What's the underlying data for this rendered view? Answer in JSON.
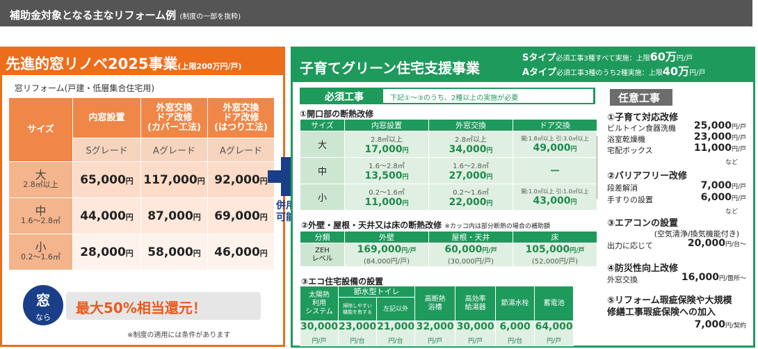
{
  "header": {
    "title": "補助金対象となる主なリフォーム例",
    "note": "(制度の一部を抜粋)"
  },
  "left": {
    "title": "先進的窓リノベ2025事業",
    "title_note": "(上限200万円/戸)",
    "subtitle": "窓リフォーム(戸建・低層集合住宅用)",
    "col_size": "サイズ",
    "cols": [
      {
        "h": "内窓設置",
        "g": "Sグレード"
      },
      {
        "h": "外窓交換\nドア改修\n(カバー工法)",
        "g": "Aグレード"
      },
      {
        "h": "外窓交換\nドア改修\n(はつり工法)",
        "g": "Aグレード"
      }
    ],
    "rows": [
      {
        "size": "大",
        "range": "2.8㎡以上",
        "v": [
          "65,000",
          "117,000",
          "92,000"
        ]
      },
      {
        "size": "中",
        "range": "1.6～2.8㎡",
        "v": [
          "44,000",
          "87,000",
          "69,000"
        ]
      },
      {
        "size": "小",
        "range": "0.2～1.6㎡",
        "v": [
          "28,000",
          "58,000",
          "46,000"
        ]
      }
    ],
    "unit": "円",
    "badge_main": "窓",
    "badge_sub": "なら",
    "promo": "最大50%相当還元！",
    "footnote": "※制度の適用には条件があります"
  },
  "combine": "併用\n可能",
  "right": {
    "title": "子育てグリーン住宅支援事業",
    "s_type": "Sタイプ",
    "s_desc": "必須工事3種すべて実施",
    "s_label": "：上限",
    "s_amt": "60万",
    "s_unit": "円/戸",
    "a_type": "Aタイプ",
    "a_desc": "必須工事3種のうち2種実施",
    "a_label": "：上限",
    "a_amt": "40万",
    "a_unit": "円/戸",
    "must_label": "必須工事",
    "must_desc": "下記①～③のうち、2種以上の実施が必要",
    "sec1": "①開口部の断熱改修",
    "t1_head": [
      "サイズ",
      "内窓設置",
      "外窓交換",
      "ドア交換"
    ],
    "t1_rows": [
      {
        "size": "大",
        "c": [
          {
            "s": "2.8㎡以上",
            "v": "17,000"
          },
          {
            "s": "2.8㎡以上",
            "v": "34,000"
          },
          {
            "s": "開:1.8㎡以上 引:3.0㎡以上",
            "v": "49,000"
          }
        ]
      },
      {
        "size": "中",
        "c": [
          {
            "s": "1.6～2.8㎡",
            "v": "13,500"
          },
          {
            "s": "1.6～2.8㎡",
            "v": "27,000"
          },
          {
            "s": "",
            "v": "ー"
          }
        ]
      },
      {
        "size": "小",
        "c": [
          {
            "s": "0.2～1.6㎡",
            "v": "11,000"
          },
          {
            "s": "0.2～1.6㎡",
            "v": "22,000"
          },
          {
            "s": "開:1.0㎡以上 引:1.0㎡以上",
            "v": "43,000"
          }
        ]
      }
    ],
    "yen": "円",
    "sec2": "②外壁・屋根・天井又は床の断熱改修",
    "sec2_note": "※カッコ内は部分断熱の場合の補助額",
    "t2_head": [
      "分類",
      "外壁",
      "屋根・天井",
      "床"
    ],
    "t2_label": "ZEH\nレベル",
    "t2_vals": [
      {
        "v": "169,000",
        "p": "(84,000円/戸)"
      },
      {
        "v": "60,000",
        "p": "(30,000円/戸)"
      },
      {
        "v": "105,000",
        "p": "(52,000円/戸)"
      }
    ],
    "per_house": "円/戸",
    "sec3": "③エコ住宅設備の設置",
    "t3_head": [
      "太陽熱\n利用\nシステム",
      "節水型トイレ",
      "高断熱\n浴槽",
      "高効率\n給湯器",
      "節湯水栓",
      "蓄電池"
    ],
    "t3_toilet": [
      "掃除しやすい\n機能を有する",
      "左記以外"
    ],
    "t3_vals": [
      {
        "v": "30,000",
        "u": "円/戸"
      },
      {
        "v": "23,000",
        "u": "円/台"
      },
      {
        "v": "21,000",
        "u": "円/台"
      },
      {
        "v": "32,000",
        "u": "円/戸"
      },
      {
        "v": "30,000",
        "u": "円/戸"
      },
      {
        "v": "6,000",
        "u": "円/台"
      },
      {
        "v": "64,000",
        "u": "円/戸"
      }
    ],
    "optional": {
      "title": "任意工事",
      "g1": "①子育て対応改修",
      "g1_items": [
        {
          "n": "ビルトイン食器洗機",
          "p": "25,000",
          "u": "円/戸"
        },
        {
          "n": "浴室乾燥機",
          "p": "23,000",
          "u": "円/戸"
        },
        {
          "n": "宅配ボックス",
          "p": "11,000",
          "u": "円/戸"
        }
      ],
      "etc": "など",
      "g2": "②バリアフリー改修",
      "g2_items": [
        {
          "n": "段差解消",
          "p": "7,000",
          "u": "円/戸"
        },
        {
          "n": "手すりの設置",
          "p": "6,000",
          "u": "円/戸"
        }
      ],
      "g3": "③エアコンの設置",
      "g3_sub": "(空気清浄/換気機能付き)",
      "g3_item": {
        "n": "出力に応じて",
        "p": "20,000",
        "u": "円/台～"
      },
      "g4": "④防災性向上改修",
      "g4_item": {
        "n": "外窓交換",
        "p": "16,000",
        "u": "円/箇所～"
      },
      "g5": "⑤リフォーム瑕疵保険や大規模\n修繕工事瑕疵保険への加入",
      "g5_item": {
        "p": "7,000",
        "u": "円/契約"
      }
    }
  }
}
